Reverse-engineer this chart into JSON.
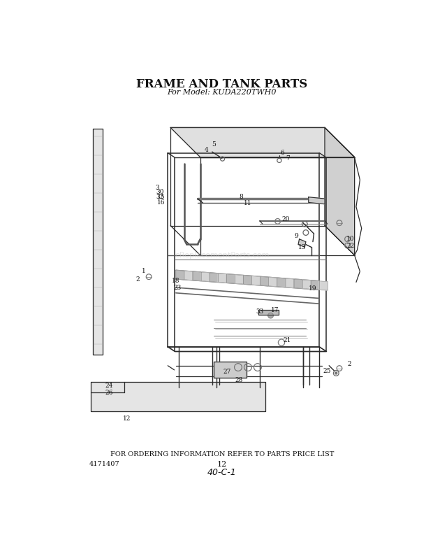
{
  "title": "FRAME AND TANK PARTS",
  "subtitle": "For Model: KUDA220TWH0",
  "footer_text": "FOR ORDERING INFORMATION REFER TO PARTS PRICE LIST",
  "part_number_left": "4171407",
  "page_number": "12",
  "handwritten": "40-C-1",
  "bg_color": "#ffffff",
  "title_fontsize": 12,
  "subtitle_fontsize": 8,
  "footer_fontsize": 7,
  "watermark": "eReplacementParts.com"
}
